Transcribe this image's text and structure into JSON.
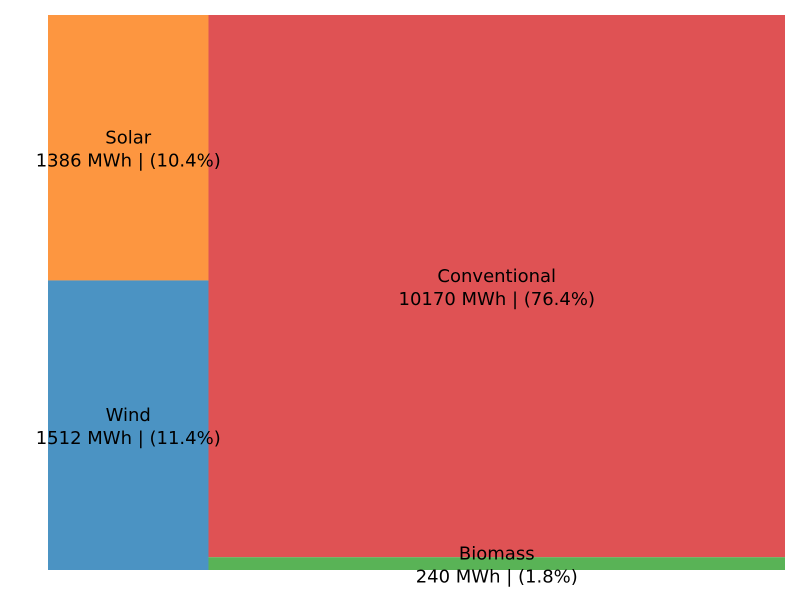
{
  "chart_data": {
    "type": "treemap",
    "unit": "MWh",
    "items": [
      {
        "name": "Solar",
        "value": 1386,
        "percent": "10.4%",
        "label": "1386 MWh | (10.4%)",
        "color": "#fd9640"
      },
      {
        "name": "Wind",
        "value": 1512,
        "percent": "11.4%",
        "label": "1512 MWh | (11.4%)",
        "color": "#4b93c3"
      },
      {
        "name": "Conventional",
        "value": 10170,
        "percent": "76.4%",
        "label": "10170 MWh | (76.4%)",
        "color": "#df5254"
      },
      {
        "name": "Biomass",
        "value": 240,
        "percent": "1.8%",
        "label": "240 MWh | (1.8%)",
        "color": "#59b356"
      }
    ]
  }
}
